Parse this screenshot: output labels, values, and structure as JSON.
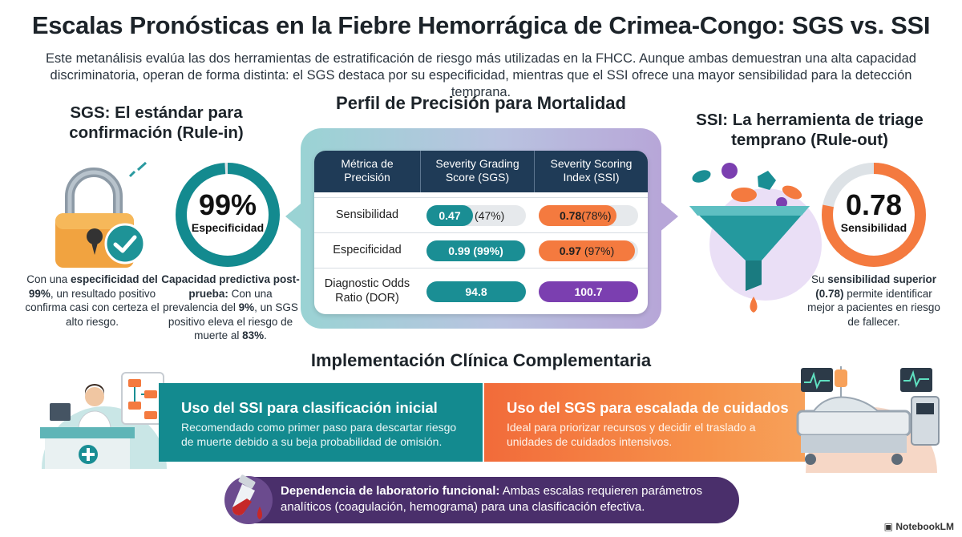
{
  "title": "Escalas Pronósticas en la Fiebre Hemorrágica de Crimea-Congo: SGS vs. SSI",
  "intro": [
    "Este metanálisis evalúa las dos herramientas de estratificación de riesgo más utilizadas en la FHCC. Aunque ambas demuestran una alta capacidad",
    "discriminatoria, operan de forma distinta: el SGS destaca por su especificidad, mientras que el SSI ofrece una mayor sensibilidad para la detección temprana."
  ],
  "sgs": {
    "heading_l1": "SGS: El estándar para",
    "heading_l2": "confirmación (Rule-in)",
    "ring_value": "99%",
    "ring_label": "Especificidad",
    "ring_fraction": 0.99,
    "lock_text_a": "Con una ",
    "lock_text_b": "especificidad del 99%",
    "lock_text_c": ", un resultado positivo confirma casi con certeza el alto riesgo.",
    "ring_text_a": "Capacidad predictiva post-prueba:",
    "ring_text_b": " Con una prevalencia del ",
    "ring_text_c": "9%",
    "ring_text_d": ", un SGS positivo eleva el riesgo de muerte al ",
    "ring_text_e": "83%",
    "ring_text_f": "."
  },
  "ssi": {
    "heading_l1": "SSI: La herramienta de triage",
    "heading_l2": "temprano (Rule-out)",
    "ring_value": "0.78",
    "ring_label": "Sensibilidad",
    "ring_fraction": 0.78,
    "text_a": "Su ",
    "text_b": "sensibilidad superior (0.78)",
    "text_c": " permite identificar mejor a pacientes en riesgo de fallecer."
  },
  "table": {
    "heading": "Perfil de Precisión para Mortalidad",
    "col1_l1": "Métrica de",
    "col1_l2": "Precisión",
    "col2_l1": "Severity Grading",
    "col2_l2": "Score (SGS)",
    "col3_l1": "Severity Scoring",
    "col3_l2": "Index (SSI)",
    "rows": [
      {
        "label": "Sensibilidad",
        "sgs_value": "0.47",
        "sgs_pct": "(47%)",
        "sgs_fraction": 0.47,
        "ssi_value": "0.78",
        "ssi_pct": "(78%)",
        "ssi_fraction": 0.78
      },
      {
        "label": "Especificidad",
        "sgs_value": "0.99",
        "sgs_pct": "(99%)",
        "sgs_fraction": 0.99,
        "ssi_value": "0.97",
        "ssi_pct": "(97%)",
        "ssi_fraction": 0.97
      },
      {
        "label_l1": "Diagnostic Odds",
        "label_l2": "Ratio (DOR)",
        "sgs_value": "94.8",
        "ssi_value": "100.7"
      }
    ]
  },
  "implementation": {
    "heading": "Implementación Clínica Complementaria",
    "ssi_card_title": "Uso del SSI para clasificación inicial",
    "ssi_card_body": "Recomendado como primer paso para descartar riesgo de muerte debido a su beja probabilidad de omisión.",
    "sgs_card_title": "Uso del SGS para escalada de cuidados",
    "sgs_card_body": "Ideal para priorizar recursos y decidir el traslado a unidades de cuidados intensivos.",
    "lab_bold": "Dependencia de laboratorio funcional:",
    "lab_text": " Ambas escalas requieren parámetros analíticos (coagulación, hemograma) para una clasificación efectiva."
  },
  "brand": "NotebookLM",
  "colors": {
    "teal": "#138a8f",
    "orange": "#f47a3f",
    "purple": "#7b3fb0",
    "navy": "#1f3b57",
    "ring_gray": "#dde2e6"
  },
  "icons": [
    "lock-icon",
    "check-icon",
    "funnel-icon",
    "doctor-desk-icon",
    "flowchart-icon",
    "hospital-bed-icon",
    "blood-tube-icon",
    "notebooklm-logo"
  ]
}
